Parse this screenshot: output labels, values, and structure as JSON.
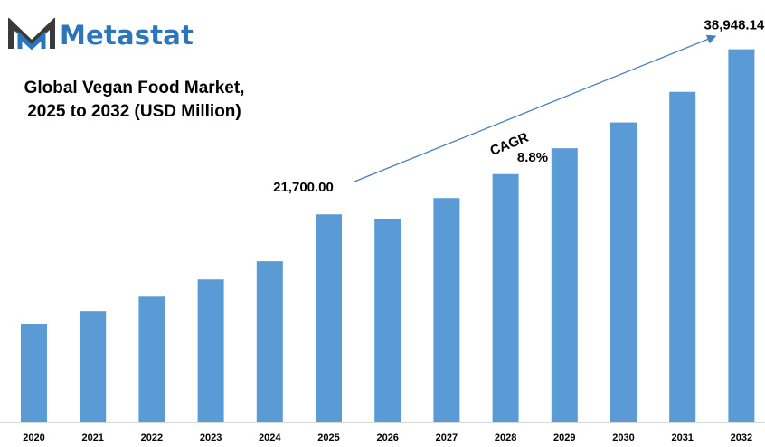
{
  "brand": {
    "name": "Metastat",
    "logo_icon": "metastat-m-logo"
  },
  "colors": {
    "bar": "#5b9bd5",
    "brand": "#2a75bb",
    "logo_dark": "#3a3a3a",
    "arrow": "#4a7ebb"
  },
  "chart_data": {
    "type": "bar",
    "title_lines": [
      "Global Vegan Food Market,",
      "2025 to 2032 (USD Million)"
    ],
    "categories": [
      "2020",
      "2021",
      "2022",
      "2023",
      "2024",
      "2025",
      "2026",
      "2027",
      "2028",
      "2029",
      "2030",
      "2031",
      "2032"
    ],
    "values": [
      10200,
      11600,
      13100,
      14900,
      16800,
      21700,
      21200,
      23400,
      25900,
      28600,
      31300,
      34500,
      38948.14
    ],
    "ylim": [
      0,
      42500
    ],
    "grid": false,
    "annotations": [
      {
        "text": "21,700.00",
        "category": "2025"
      },
      {
        "text": "38,948.14",
        "category": "2032"
      }
    ],
    "cagr": {
      "label": "CAGR",
      "value": "8.8%"
    }
  }
}
